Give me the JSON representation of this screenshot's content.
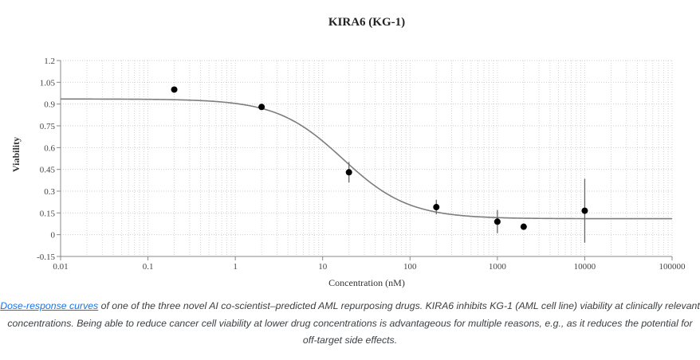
{
  "chart_data": {
    "type": "scatter",
    "title": "KIRA6 (KG-1)",
    "xlabel": "Concentration (nM)",
    "ylabel": "Viability",
    "xscale": "log",
    "xlim": [
      0.01,
      100000
    ],
    "ylim": [
      -0.15,
      1.2
    ],
    "xticks": [
      0.01,
      0.1,
      1,
      10,
      100,
      1000,
      10000,
      100000
    ],
    "xtick_labels": [
      "0.01",
      "0.1",
      "1",
      "10",
      "100",
      "1000",
      "10000",
      "100000"
    ],
    "yticks": [
      -0.15,
      0,
      0.15,
      0.3,
      0.45,
      0.6,
      0.75,
      0.9,
      1.05,
      1.2
    ],
    "ytick_labels": [
      "-0.15",
      "0",
      "0.15",
      "0.3",
      "0.45",
      "0.6",
      "0.75",
      "0.9",
      "1.05",
      "1.2"
    ],
    "grid": true,
    "points": [
      {
        "x": 0.2,
        "y": 1.0,
        "err": 0
      },
      {
        "x": 2,
        "y": 0.88,
        "err": 0.02
      },
      {
        "x": 20,
        "y": 0.43,
        "err": 0.07
      },
      {
        "x": 200,
        "y": 0.19,
        "err": 0.05
      },
      {
        "x": 1000,
        "y": 0.09,
        "err": 0.08
      },
      {
        "x": 2000,
        "y": 0.055,
        "err": 0
      },
      {
        "x": 10000,
        "y": 0.165,
        "err": 0.22
      }
    ],
    "fit_curve": {
      "model": "4PL",
      "top": 0.935,
      "bottom": 0.11,
      "ic50": 17,
      "hill": 1.15
    }
  },
  "caption": {
    "link_text": "Dose-response curves",
    "text": " of one of the three novel AI co-scientist–predicted AML repurposing drugs. KIRA6 inhibits KG-1 (AML cell line) viability at clinically relevant concentrations. Being able to reduce cancer cell viability at lower drug concentrations is advantageous for multiple reasons, e.g., as it reduces the potential for off-target side effects."
  }
}
